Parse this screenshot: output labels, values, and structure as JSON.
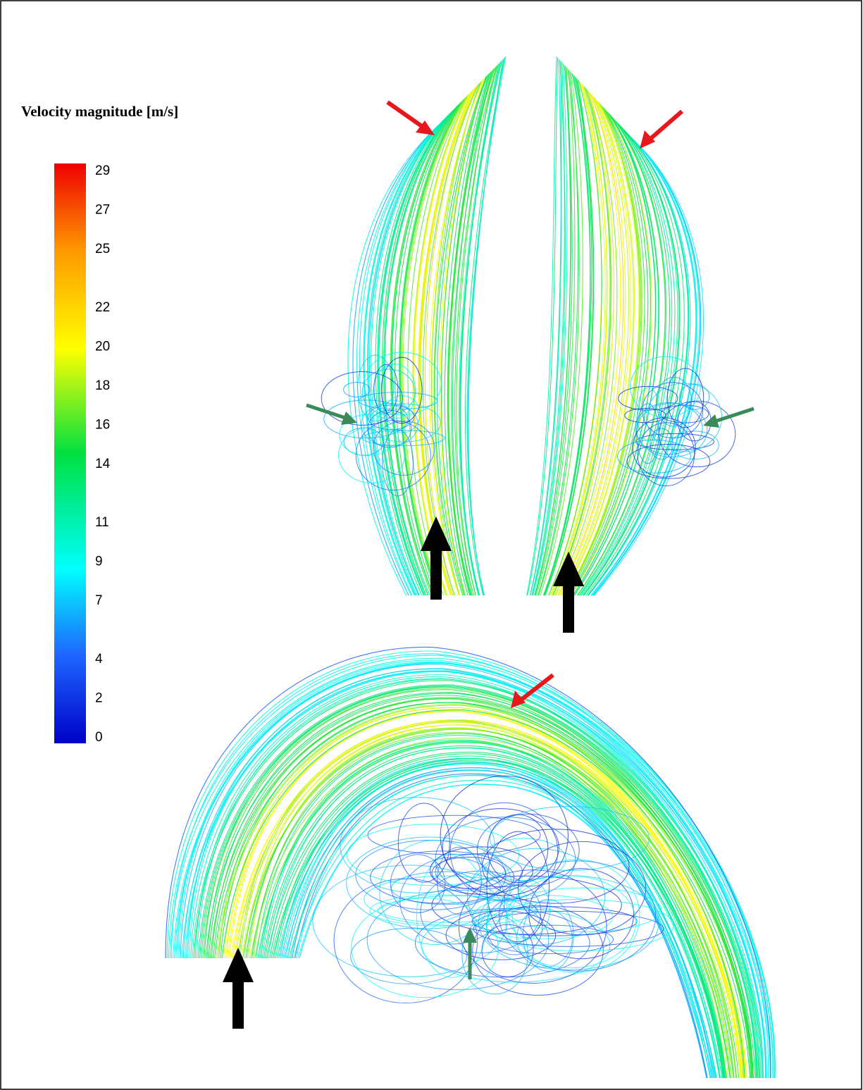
{
  "legend": {
    "title": "Velocity magnitude [m/s]",
    "ticks": [
      29,
      27,
      25,
      22,
      20,
      18,
      16,
      14,
      11,
      9,
      7,
      4,
      2,
      0
    ]
  }
}
